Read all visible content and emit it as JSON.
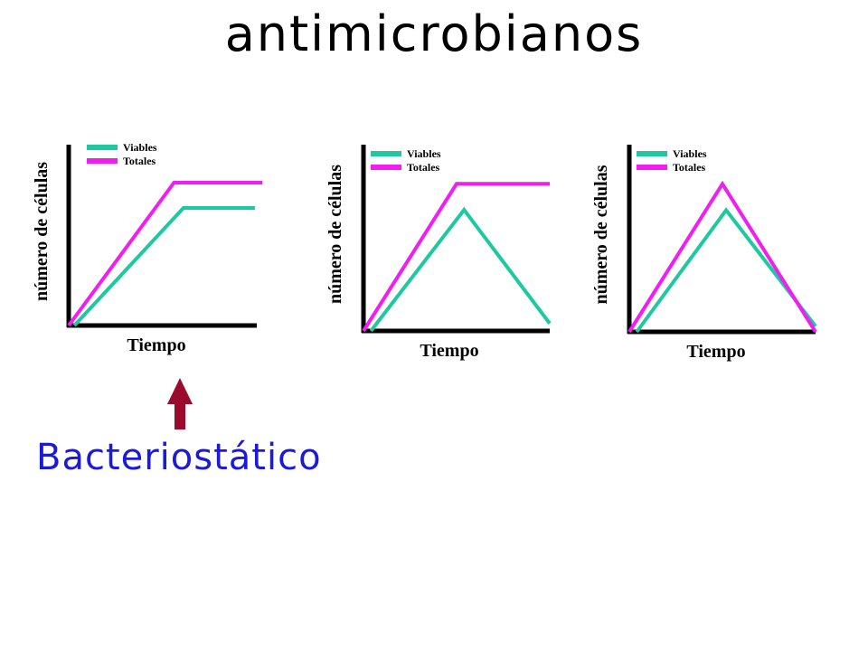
{
  "slide": {
    "title": "antimicrobianos",
    "callout": "Bacteriostático",
    "arrow_color": "#9b0b2b",
    "callout_color": "#1a1ad8"
  },
  "colors": {
    "viables": "#1ec9a0",
    "totales": "#f01ef0",
    "axis": "#000000"
  },
  "chart_data": [
    {
      "type": "line",
      "xlabel": "Tiempo",
      "ylabel": "número de células",
      "legend_position": "top-left",
      "grid": false,
      "xlim": [
        0,
        10
      ],
      "ylim": [
        0,
        10
      ],
      "series": [
        {
          "name": "Viables",
          "color": "#1ec9a0",
          "x": [
            0.3,
            6.1,
            9.9
          ],
          "y": [
            0,
            6.5,
            6.5
          ]
        },
        {
          "name": "Totales",
          "color": "#f01ef0",
          "x": [
            0,
            5.6,
            10.3
          ],
          "y": [
            0,
            7.9,
            7.9
          ]
        }
      ]
    },
    {
      "type": "line",
      "xlabel": "Tiempo",
      "ylabel": "número de células",
      "legend_position": "top-left",
      "grid": false,
      "xlim": [
        0,
        10
      ],
      "ylim": [
        0,
        10
      ],
      "series": [
        {
          "name": "Viables",
          "color": "#1ec9a0",
          "x": [
            0.4,
            5.4,
            10.0
          ],
          "y": [
            0,
            6.5,
            0.4
          ]
        },
        {
          "name": "Totales",
          "color": "#f01ef0",
          "x": [
            0,
            5.0,
            10.0
          ],
          "y": [
            0,
            7.9,
            7.9
          ]
        }
      ]
    },
    {
      "type": "line",
      "xlabel": "Tiempo",
      "ylabel": "número de células",
      "legend_position": "top-left",
      "grid": false,
      "xlim": [
        0,
        10
      ],
      "ylim": [
        0,
        10
      ],
      "series": [
        {
          "name": "Viables",
          "color": "#1ec9a0",
          "x": [
            0.4,
            5.2,
            10.0
          ],
          "y": [
            0,
            6.5,
            0.3
          ]
        },
        {
          "name": "Totales",
          "color": "#f01ef0",
          "x": [
            0,
            5.0,
            10.0
          ],
          "y": [
            0,
            7.9,
            0
          ]
        }
      ]
    }
  ]
}
